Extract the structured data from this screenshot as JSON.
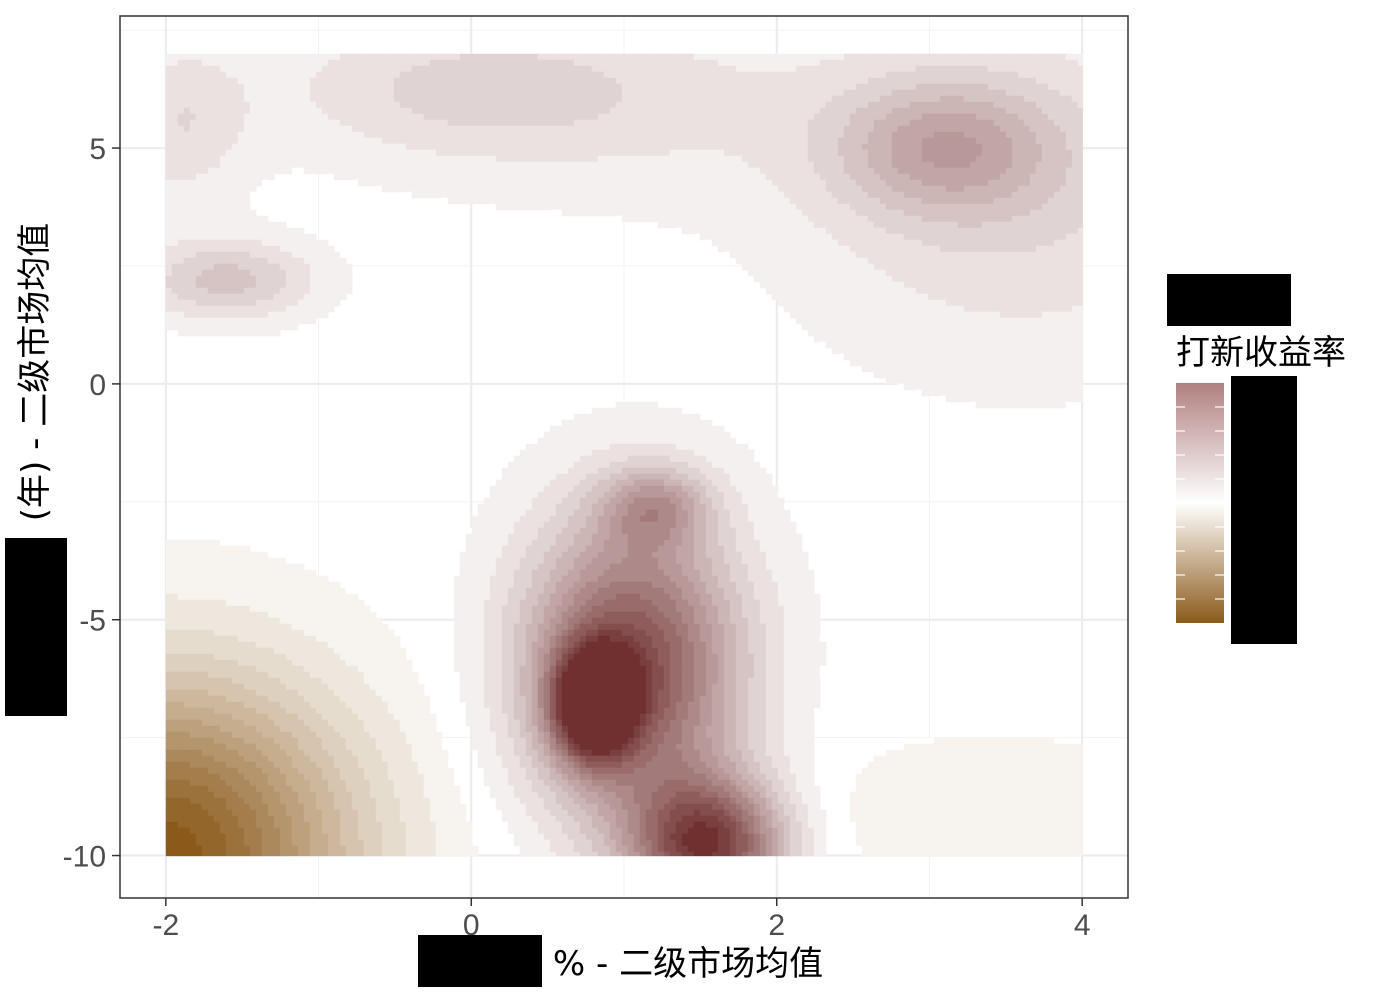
{
  "chart_data": {
    "type": "heatmap",
    "subtype": "filled-contour",
    "title": "",
    "xlabel": "% - 二级市场均值",
    "ylabel": "(年) - 二级市场均值",
    "xlim": [
      -2.3,
      4.3
    ],
    "ylim": [
      -10.9,
      7.8
    ],
    "x_domain": [
      -2,
      4
    ],
    "y_domain": [
      -10,
      7
    ],
    "x_ticks": [
      -2,
      0,
      2,
      4
    ],
    "x_tick_labels": [
      "-2",
      "0",
      "2",
      "4"
    ],
    "y_ticks": [
      -10,
      -5,
      0,
      5
    ],
    "y_tick_labels": [
      "-10",
      "-5",
      "0",
      "5"
    ],
    "grid": true,
    "legend": {
      "title": "打新收益率",
      "position": "right",
      "colors": [
        "#8b5a1b",
        "#ffffff",
        "#b08080"
      ]
    },
    "features": [
      {
        "type": "hill",
        "x": 0.8,
        "y": -6.8,
        "value": 1.0,
        "sx": 0.18,
        "sy": 0.8
      },
      {
        "type": "hill",
        "x": 1.05,
        "y": -6.0,
        "value": 0.85,
        "sx": 0.5,
        "sy": 2.2
      },
      {
        "type": "hill",
        "x": 1.55,
        "y": -9.8,
        "value": 0.9,
        "sx": 0.35,
        "sy": 1.0
      },
      {
        "type": "hill",
        "x": 1.2,
        "y": -2.6,
        "value": 0.35,
        "sx": 0.25,
        "sy": 0.6
      },
      {
        "type": "hill",
        "x": 3.1,
        "y": 5.0,
        "value": 0.32,
        "sx": 0.5,
        "sy": 1.0
      },
      {
        "type": "hill",
        "x": 3.6,
        "y": 4.0,
        "value": 0.18,
        "sx": 1.0,
        "sy": 2.5
      },
      {
        "type": "hill",
        "x": -1.6,
        "y": 2.2,
        "value": 0.28,
        "sx": 0.4,
        "sy": 0.6
      },
      {
        "type": "hill",
        "x": -1.9,
        "y": 5.5,
        "value": 0.16,
        "sx": 0.3,
        "sy": 1.2
      },
      {
        "type": "hill",
        "x": 0.0,
        "y": 6.3,
        "value": 0.16,
        "sx": 0.9,
        "sy": 1.0
      },
      {
        "type": "hill",
        "x": 1.0,
        "y": 5.8,
        "value": 0.09,
        "sx": 1.3,
        "sy": 1.5
      },
      {
        "type": "hill",
        "x": -2.0,
        "y": -10.0,
        "value": -1.0,
        "sx": 0.85,
        "sy": 2.6
      },
      {
        "type": "hill",
        "x": 3.4,
        "y": -9.2,
        "value": -0.1,
        "sx": 0.9,
        "sy": 1.2
      }
    ]
  }
}
